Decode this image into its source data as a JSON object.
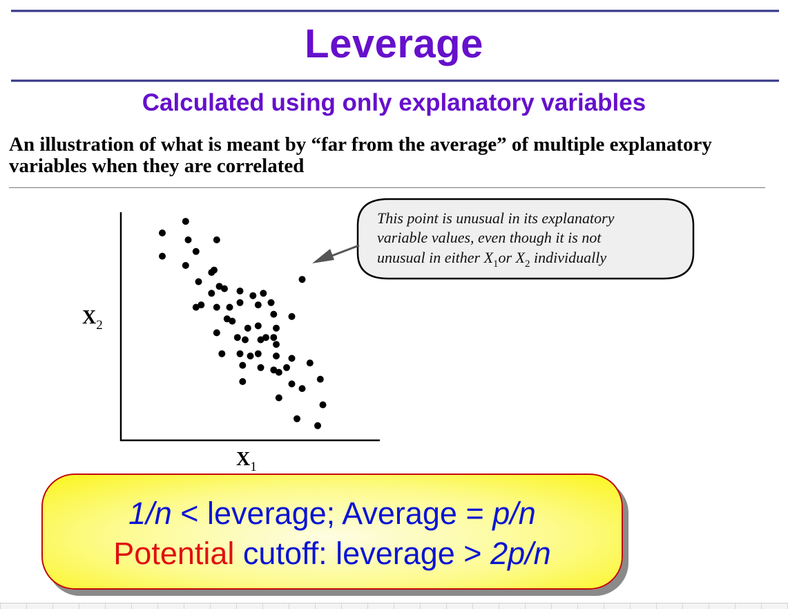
{
  "header": {
    "title": "Leverage",
    "subtitle": "Calculated using only explanatory variables"
  },
  "description": "An illustration of what is meant by “far from the average” of multiple explanatory variables when they are correlated",
  "chart_data": {
    "type": "scatter",
    "xlabel": "X",
    "xlabel_sub": "1",
    "ylabel": "X",
    "ylabel_sub": "2",
    "axes_ticks": false,
    "grid": false,
    "xlim": [
      0,
      100
    ],
    "ylim": [
      0,
      100
    ],
    "points": [
      [
        16,
        89
      ],
      [
        25,
        94
      ],
      [
        26,
        86
      ],
      [
        29,
        81
      ],
      [
        37,
        86
      ],
      [
        16,
        79
      ],
      [
        25,
        75
      ],
      [
        36,
        73
      ],
      [
        35,
        72
      ],
      [
        30,
        68
      ],
      [
        38,
        66
      ],
      [
        40,
        65
      ],
      [
        46,
        64
      ],
      [
        35,
        63
      ],
      [
        51,
        62
      ],
      [
        55,
        63
      ],
      [
        58,
        59
      ],
      [
        46,
        59
      ],
      [
        53,
        58
      ],
      [
        31,
        58
      ],
      [
        29,
        57
      ],
      [
        42,
        57
      ],
      [
        37,
        57
      ],
      [
        59,
        54
      ],
      [
        66,
        53
      ],
      [
        41,
        52
      ],
      [
        43,
        51
      ],
      [
        53,
        49
      ],
      [
        49,
        48
      ],
      [
        60,
        48
      ],
      [
        37,
        46
      ],
      [
        45,
        44
      ],
      [
        48,
        43
      ],
      [
        54,
        43
      ],
      [
        60,
        41
      ],
      [
        59,
        44
      ],
      [
        56,
        44
      ],
      [
        39,
        37
      ],
      [
        46,
        37
      ],
      [
        53,
        37
      ],
      [
        60,
        36
      ],
      [
        66,
        35
      ],
      [
        50,
        36
      ],
      [
        47,
        32
      ],
      [
        54,
        31
      ],
      [
        47,
        25
      ],
      [
        59,
        30
      ],
      [
        64,
        31
      ],
      [
        61,
        29
      ],
      [
        66,
        24
      ],
      [
        73,
        33
      ],
      [
        77,
        26
      ],
      [
        78,
        15
      ],
      [
        70,
        22
      ],
      [
        68,
        9
      ],
      [
        76,
        6
      ],
      [
        61,
        18
      ],
      [
        70,
        69
      ]
    ],
    "outlier": [
      70,
      69
    ],
    "annotation": {
      "lines": [
        "This point is unusual in its explanatory",
        "variable values, even though it is not",
        "unusual in either X₁or X₂ individually"
      ],
      "line3_parts": [
        "unusual in either X",
        "1",
        "or X",
        "2",
        " individually"
      ]
    }
  },
  "callout": {
    "line1": {
      "p1": "1/n",
      "p2": " < leverage; Average = ",
      "p3": "p/n"
    },
    "line2": {
      "p1": "Potential",
      "p2": " cutoff: leverage > ",
      "p3": "2p/n"
    }
  },
  "colors": {
    "title": "#6610cc",
    "formula_blue": "#0a14d4",
    "formula_red": "#e01010",
    "callout_border": "#c20a0a",
    "callout_fill": "#fbf41a"
  }
}
